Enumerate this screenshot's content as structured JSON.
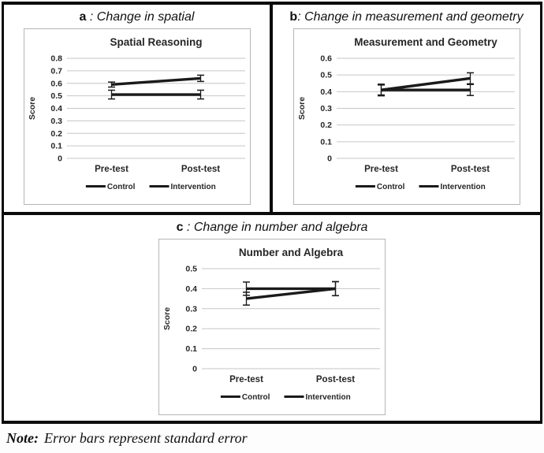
{
  "panels": [
    {
      "letter": "a",
      "colon": " : ",
      "title": "Change in spatial"
    },
    {
      "letter": "b",
      "colon": ": ",
      "title": "Change in measurement and geometry"
    },
    {
      "letter": "c",
      "colon": " : ",
      "title": "Change in number and algebra"
    }
  ],
  "note": {
    "prefix": "Note:",
    "body": "Error bars represent standard error"
  },
  "colors": {
    "line": "#1a1a1a",
    "grid": "#c6c6c6",
    "text": "#262626",
    "chart_border": "#b5b5b5",
    "panel_border": "#0b0b0b"
  },
  "chart_data": [
    {
      "type": "line",
      "title": "Spatial Reasoning",
      "xlabel": "",
      "ylabel": "Score",
      "categories": [
        "Pre-test",
        "Post-test"
      ],
      "ylim": [
        0,
        0.8
      ],
      "yticks": [
        "0.8",
        "0.7",
        "0.6",
        "0.5",
        "0.4",
        "0.3",
        "0.2",
        "0.1",
        "0"
      ],
      "grid": true,
      "legend_position": "bottom",
      "error_bars": "standard error",
      "series": [
        {
          "name": "Control",
          "values": [
            0.51,
            0.51
          ],
          "stderr": [
            0.035,
            0.035
          ]
        },
        {
          "name": "Intervention",
          "values": [
            0.59,
            0.64
          ],
          "stderr": [
            0.02,
            0.025
          ]
        }
      ]
    },
    {
      "type": "line",
      "title": "Measurement and Geometry",
      "xlabel": "",
      "ylabel": "Score",
      "categories": [
        "Pre-test",
        "Post-test"
      ],
      "ylim": [
        0,
        0.6
      ],
      "yticks": [
        "0.6",
        "0.5",
        "0.4",
        "0.3",
        "0.2",
        "0.1",
        "0"
      ],
      "grid": true,
      "legend_position": "bottom",
      "error_bars": "standard error",
      "series": [
        {
          "name": "Control",
          "values": [
            0.41,
            0.41
          ],
          "stderr": [
            0.03,
            0.033
          ]
        },
        {
          "name": "Intervention",
          "values": [
            0.41,
            0.48
          ],
          "stderr": [
            0.035,
            0.033
          ]
        }
      ]
    },
    {
      "type": "line",
      "title": "Number and Algebra",
      "xlabel": "",
      "ylabel": "Score",
      "categories": [
        "Pre-test",
        "Post-test"
      ],
      "ylim": [
        0,
        0.5
      ],
      "yticks": [
        "0.5",
        "0.4",
        "0.3",
        "0.2",
        "0.1",
        "0"
      ],
      "grid": true,
      "legend_position": "bottom",
      "error_bars": "standard error",
      "series": [
        {
          "name": "Control",
          "values": [
            0.4,
            0.4
          ],
          "stderr": [
            0.033,
            0.035
          ]
        },
        {
          "name": "Intervention",
          "values": [
            0.35,
            0.4
          ],
          "stderr": [
            0.032,
            0.035
          ]
        }
      ]
    }
  ]
}
